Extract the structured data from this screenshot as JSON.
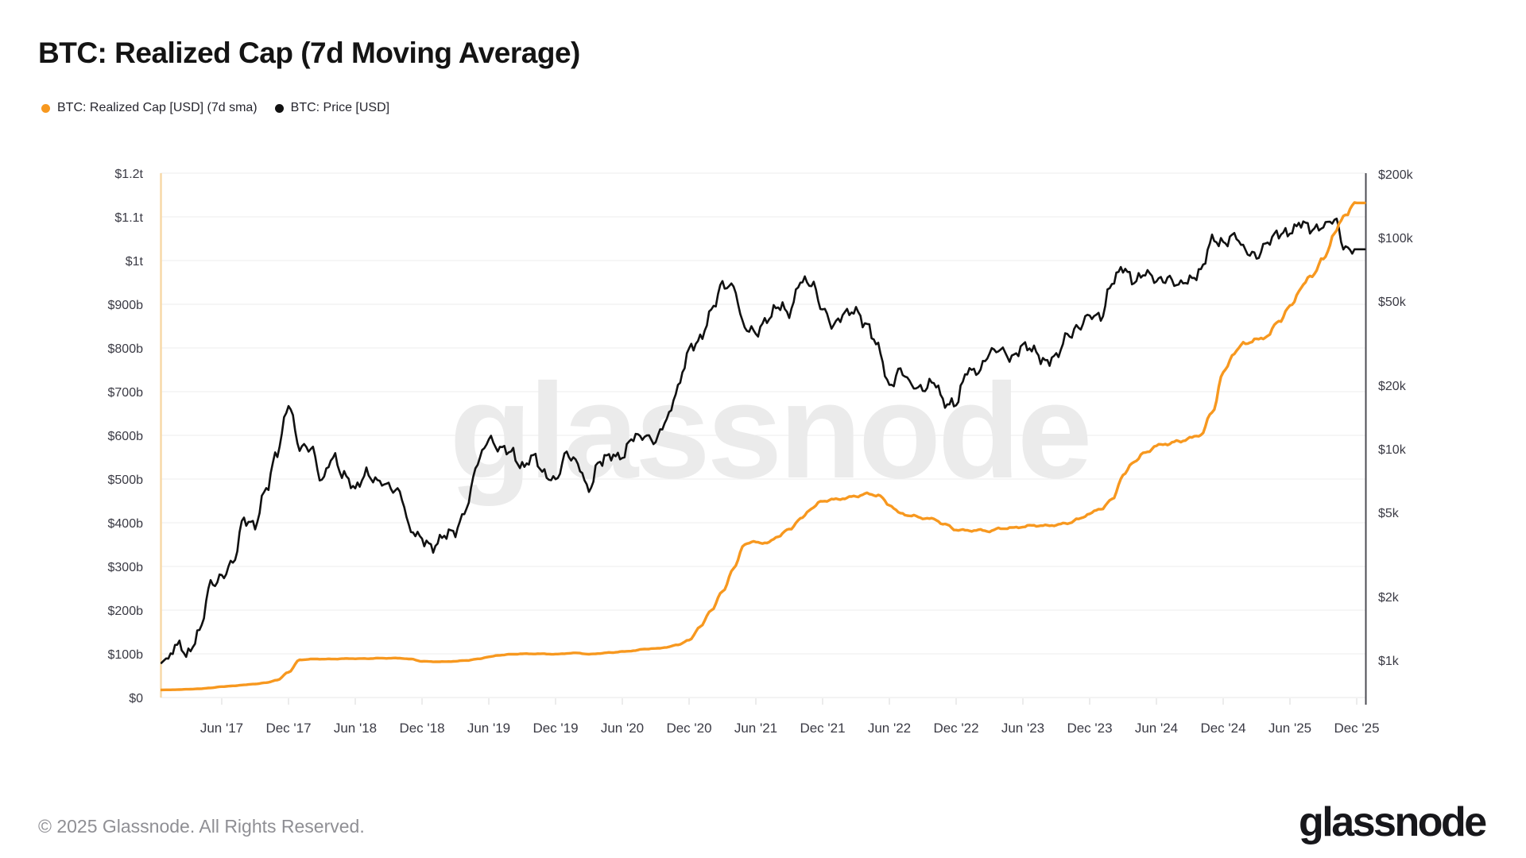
{
  "page": {
    "title": "BTC: Realized Cap (7d Moving Average)"
  },
  "legend": {
    "items": [
      {
        "label": "BTC: Realized Cap [USD] (7d sma)",
        "color": "#F7981F"
      },
      {
        "label": "BTC: Price [USD]",
        "color": "#111111"
      }
    ]
  },
  "watermark": {
    "text": "glassnode"
  },
  "footer": {
    "copyright": "© 2025 Glassnode. All Rights Reserved.",
    "brand": "glassnode"
  },
  "axes": {
    "left_labels": [
      "$0",
      "$100b",
      "$200b",
      "$300b",
      "$400b",
      "$500b",
      "$600b",
      "$700b",
      "$800b",
      "$900b",
      "$1t",
      "$1.1t",
      "$1.2t"
    ],
    "right_labels": [
      {
        "text": "$1k",
        "value": 1000
      },
      {
        "text": "$2k",
        "value": 2000
      },
      {
        "text": "$5k",
        "value": 5000
      },
      {
        "text": "$10k",
        "value": 10000
      },
      {
        "text": "$20k",
        "value": 20000
      },
      {
        "text": "$50k",
        "value": 50000
      },
      {
        "text": "$100k",
        "value": 100000
      },
      {
        "text": "$200k",
        "value": 200000
      }
    ],
    "x_labels": [
      "Jun '17",
      "Dec '17",
      "Jun '18",
      "Dec '18",
      "Jun '19",
      "Dec '19",
      "Jun '20",
      "Dec '20",
      "Jun '21",
      "Dec '21",
      "Jun '22",
      "Dec '22",
      "Jun '23",
      "Dec '23",
      "Jun '24",
      "Dec '24",
      "Jun '25",
      "Dec '25"
    ]
  },
  "chart_data": {
    "type": "line",
    "title": "BTC: Realized Cap (7d Moving Average)",
    "x_unit": "month",
    "months_start": "2017-01",
    "months_end": "2025-12",
    "x_tick_labels": [
      "Jun '17",
      "Dec '17",
      "Jun '18",
      "Dec '18",
      "Jun '19",
      "Dec '19",
      "Jun '20",
      "Dec '20",
      "Jun '21",
      "Dec '21",
      "Jun '22",
      "Dec '22",
      "Jun '23",
      "Dec '23",
      "Jun '24",
      "Dec '24",
      "Jun '25",
      "Dec '25"
    ],
    "left_axis": {
      "scale": "linear",
      "unit": "USD",
      "tick_range": [
        "$0",
        "$1.2t"
      ],
      "ylim_billions": [
        0,
        1200
      ],
      "grid": true
    },
    "right_axis": {
      "scale": "log",
      "unit": "USD",
      "tick_range": [
        "$1k",
        "$200k"
      ],
      "ticks": [
        1000,
        2000,
        5000,
        10000,
        20000,
        50000,
        100000,
        200000
      ],
      "grid": false
    },
    "legend_position": "top-left",
    "series": [
      {
        "name": "BTC: Realized Cap [USD] (7d sma)",
        "axis": "left",
        "unit": "USD billions",
        "color": "#F7981F",
        "monthly_values": [
          17.5,
          18,
          19,
          20,
          22,
          25,
          26.5,
          29,
          31,
          34,
          40,
          58,
          86,
          88,
          88,
          88,
          89,
          89,
          89,
          90,
          90,
          90,
          88,
          83,
          82,
          82,
          83,
          85,
          88,
          93,
          97,
          99,
          100,
          100,
          100,
          99,
          101,
          102,
          99,
          101,
          103,
          105,
          107,
          111,
          112,
          115,
          121,
          131,
          162,
          200,
          242,
          295,
          352,
          356,
          353,
          369,
          385,
          408,
          433,
          450,
          453,
          456,
          461,
          466,
          463,
          441,
          421,
          416,
          411,
          408,
          396,
          384,
          382,
          383,
          381,
          387,
          388,
          391,
          394,
          393,
          395,
          399,
          408,
          421,
          432,
          452,
          508,
          541,
          560,
          576,
          581,
          586,
          593,
          602,
          652,
          742,
          790,
          812,
          818,
          828,
          862,
          893,
          938,
          968,
          1002,
          1062,
          1108,
          1132
        ]
      },
      {
        "name": "BTC: Price [USD]",
        "axis": "right",
        "unit": "USD",
        "color": "#111111",
        "monthly_values": [
          970,
          1190,
          1080,
          1350,
          2300,
          2480,
          2850,
          4700,
          4340,
          6450,
          9900,
          16000,
          10200,
          10300,
          7000,
          9250,
          7500,
          6400,
          7750,
          7000,
          6600,
          6300,
          4050,
          3740,
          3450,
          3850,
          4100,
          5300,
          8550,
          11300,
          10000,
          9600,
          8300,
          9150,
          7550,
          7200,
          9350,
          8550,
          6450,
          8650,
          9450,
          9150,
          11350,
          11650,
          10800,
          13800,
          19700,
          29000,
          33100,
          45200,
          58800,
          59000,
          37300,
          35000,
          41500,
          47150,
          43800,
          63000,
          60000,
          46200,
          38500,
          43200,
          45550,
          38000,
          30000,
          20000,
          23300,
          20050,
          19400,
          20500,
          16500,
          16550,
          23150,
          23500,
          28450,
          29250,
          27200,
          30450,
          29250,
          26000,
          26950,
          34650,
          37700,
          42250,
          42550,
          61150,
          71300,
          63000,
          67500,
          62650,
          64600,
          58950,
          63350,
          70200,
          96400,
          95000,
          102400,
          86000,
          82550,
          94200,
          104600,
          107100,
          116000,
          110000,
          114000,
          120000,
          89000,
          88000
        ]
      }
    ]
  }
}
